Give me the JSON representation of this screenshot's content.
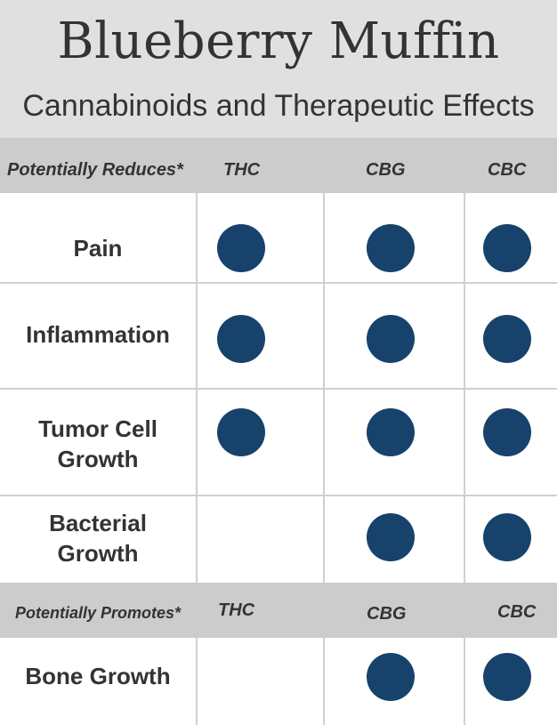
{
  "title": "Blueberry Muffin",
  "subtitle": "Cannabinoids and Therapeutic Effects",
  "chart_data": {
    "type": "table",
    "sections": [
      {
        "label": "Potentially Reduces*",
        "columns": [
          "THC",
          "CBG",
          "CBC"
        ],
        "rows": [
          {
            "label": "Pain",
            "values": [
              true,
              true,
              true
            ]
          },
          {
            "label": "Inflammation",
            "values": [
              true,
              true,
              true
            ]
          },
          {
            "label": "Tumor Cell Growth",
            "values": [
              true,
              true,
              true
            ]
          },
          {
            "label": "Bacterial Growth",
            "values": [
              false,
              true,
              true
            ]
          }
        ]
      },
      {
        "label": "Potentially Promotes*",
        "columns": [
          "THC",
          "CBG",
          "CBC"
        ],
        "rows": [
          {
            "label": "Bone Growth",
            "values": [
              false,
              true,
              true
            ]
          }
        ]
      }
    ],
    "marker_color": "#17426b"
  }
}
